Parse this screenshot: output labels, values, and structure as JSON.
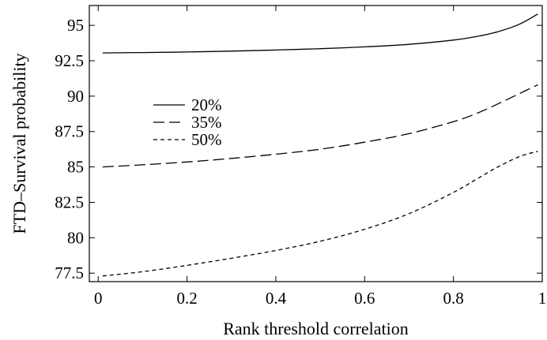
{
  "chart_data": {
    "type": "line",
    "xlabel": "Rank threshold correlation",
    "ylabel": "FTD–Survival probability",
    "xlim": [
      -0.02,
      1.0
    ],
    "ylim": [
      76.9,
      96.4
    ],
    "x_ticks": [
      0,
      0.2,
      0.4,
      0.6,
      0.8,
      1
    ],
    "x_tick_labels": [
      "0",
      "0.2",
      "0.4",
      "0.6",
      "0.8",
      "1"
    ],
    "y_ticks": [
      77.5,
      80,
      82.5,
      85,
      87.5,
      90,
      92.5,
      95
    ],
    "y_tick_labels": [
      "77.5",
      "80",
      "82.5",
      "85",
      "87.5",
      "90",
      "92.5",
      "95"
    ],
    "grid": false,
    "legend_position": "left",
    "series": [
      {
        "name": "20%",
        "dash": "solid",
        "x": [
          0.01,
          0.1,
          0.2,
          0.3,
          0.4,
          0.5,
          0.6,
          0.7,
          0.8,
          0.85,
          0.9,
          0.95,
          0.99
        ],
        "y": [
          93.05,
          93.08,
          93.12,
          93.18,
          93.26,
          93.35,
          93.48,
          93.66,
          93.96,
          94.2,
          94.55,
          95.1,
          95.8
        ]
      },
      {
        "name": "35%",
        "dash": "long-dash",
        "x": [
          0.01,
          0.1,
          0.2,
          0.3,
          0.4,
          0.5,
          0.6,
          0.7,
          0.8,
          0.85,
          0.9,
          0.95,
          0.99
        ],
        "y": [
          85.0,
          85.15,
          85.35,
          85.6,
          85.9,
          86.25,
          86.75,
          87.35,
          88.2,
          88.75,
          89.45,
          90.2,
          90.8
        ]
      },
      {
        "name": "50%",
        "dash": "short-dash",
        "x": [
          0.01,
          0.1,
          0.2,
          0.3,
          0.4,
          0.5,
          0.6,
          0.7,
          0.8,
          0.85,
          0.9,
          0.95,
          0.99
        ],
        "y": [
          77.3,
          77.6,
          78.05,
          78.55,
          79.1,
          79.75,
          80.6,
          81.7,
          83.2,
          84.1,
          85.0,
          85.75,
          86.1
        ]
      }
    ],
    "colors": {
      "line": "#000000",
      "frame": "#000000"
    }
  }
}
